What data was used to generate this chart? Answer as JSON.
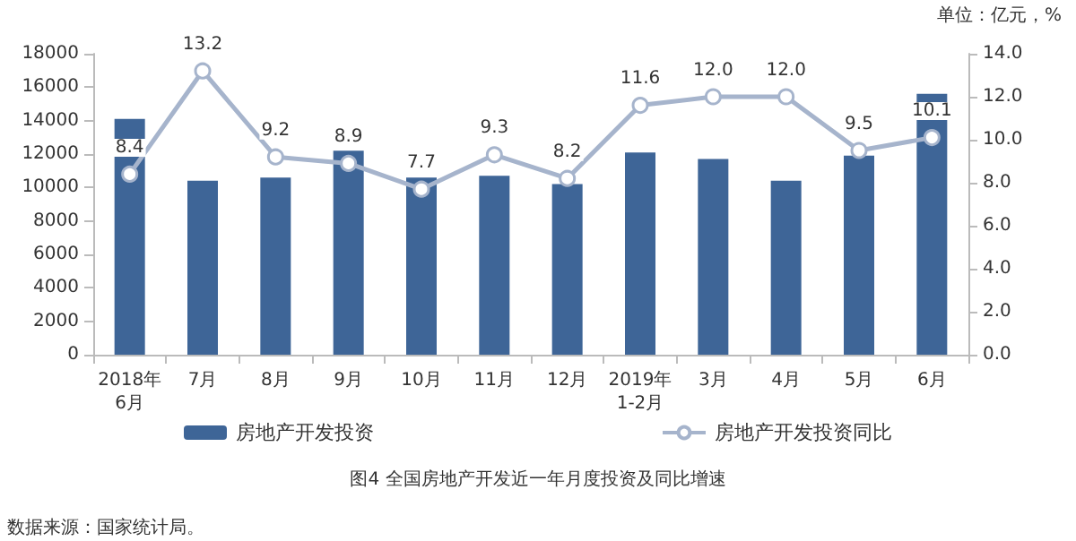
{
  "chart_data": {
    "type": "bar",
    "title": "图4 全国房地产开发近一年月度投资及同比增速",
    "categories": [
      "2018年\n6月",
      "7月",
      "8月",
      "9月",
      "10月",
      "11月",
      "12月",
      "2019年\n1-2月",
      "3月",
      "4月",
      "5月",
      "6月"
    ],
    "series": [
      {
        "name": "房地产开发投资",
        "color": "#3e6597",
        "values": [
          14100,
          10400,
          10600,
          12200,
          10600,
          10700,
          10200,
          12100,
          11700,
          10400,
          11900,
          15600
        ]
      },
      {
        "name": "房地产开发投资同比",
        "type": "line",
        "axis": "y2",
        "color": "#a6b4cc",
        "marker": "circle",
        "values": [
          8.4,
          13.2,
          9.2,
          8.9,
          7.7,
          9.3,
          8.2,
          11.6,
          12.0,
          12.0,
          9.5,
          10.1
        ],
        "value_labels": [
          "8.4",
          "13.2",
          "9.2",
          "8.9",
          "7.7",
          "9.3",
          "8.2",
          "11.6",
          "12.0",
          "12.0",
          "9.5",
          "10.1"
        ]
      }
    ],
    "ylim": [
      0,
      18000
    ],
    "yticks": [
      0,
      2000,
      4000,
      6000,
      8000,
      10000,
      12000,
      14000,
      16000,
      18000
    ],
    "y2lim": [
      0,
      14
    ],
    "y2ticks": [
      {
        "value": 0,
        "label": "0.0"
      },
      {
        "value": 2,
        "label": "2.0"
      },
      {
        "value": 4,
        "label": "4.0"
      },
      {
        "value": 6,
        "label": "6.0"
      },
      {
        "value": 8,
        "label": "8.0"
      },
      {
        "value": 10,
        "label": "10.0"
      },
      {
        "value": 12,
        "label": "12.0"
      },
      {
        "value": 14,
        "label": "14.0"
      }
    ],
    "grid": false,
    "legend": "bottom",
    "annotations": [
      "单位：亿元，%",
      "数据来源：国家统计局。"
    ]
  }
}
